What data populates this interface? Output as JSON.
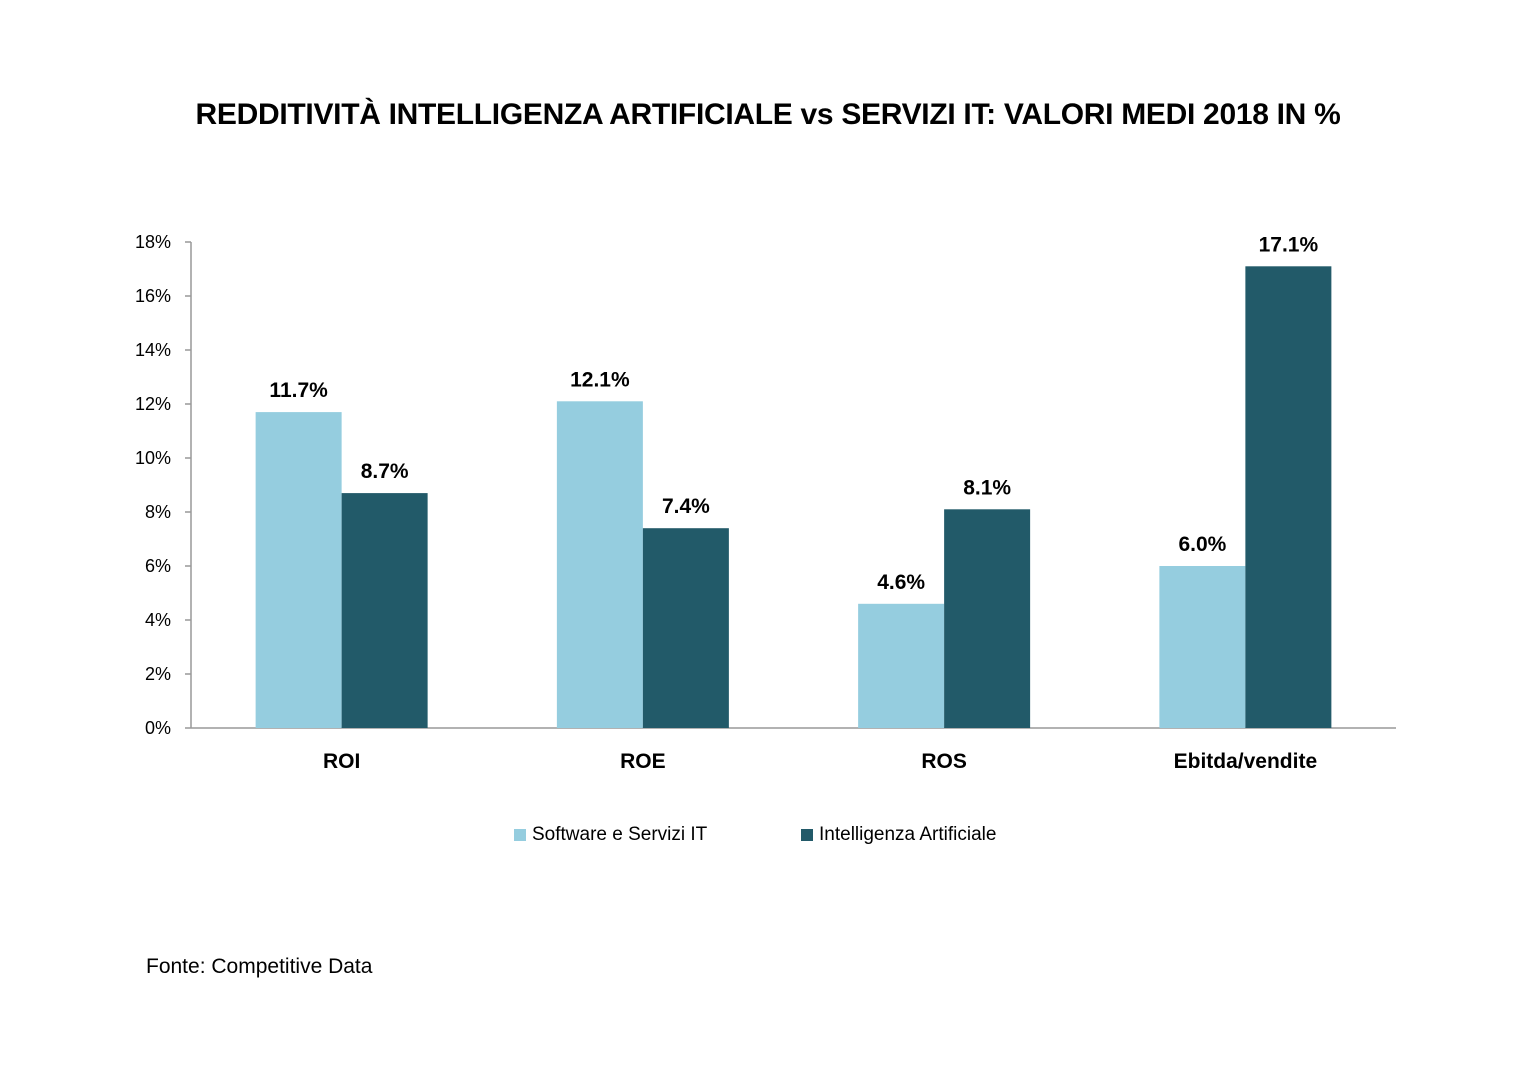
{
  "chart_data": {
    "type": "bar",
    "title": "REDDITIVITÀ INTELLIGENZA ARTIFICIALE vs SERVIZI IT: VALORI MEDI 2018 IN %",
    "categories": [
      "ROI",
      "ROE",
      "ROS",
      "Ebitda/vendite"
    ],
    "series": [
      {
        "name": "Software e Servizi IT",
        "values": [
          11.7,
          12.1,
          4.6,
          6.0
        ],
        "labels": [
          "11.7%",
          "12.1%",
          "4.6%",
          "6.0%"
        ],
        "color": "#95cddf"
      },
      {
        "name": "Intelligenza Artificiale",
        "values": [
          8.7,
          7.4,
          8.1,
          17.1
        ],
        "labels": [
          "8.7%",
          "7.4%",
          "8.1%",
          "17.1%"
        ],
        "color": "#225a69"
      }
    ],
    "y_ticks": [
      0,
      2,
      4,
      6,
      8,
      10,
      12,
      14,
      16,
      18
    ],
    "y_tick_labels": [
      "0%",
      "2%",
      "4%",
      "6%",
      "8%",
      "10%",
      "12%",
      "14%",
      "16%",
      "18%"
    ],
    "ylim": [
      0,
      18
    ],
    "grid": false,
    "legend_position": "bottom"
  },
  "source_note": "Fonte: Competitive Data"
}
